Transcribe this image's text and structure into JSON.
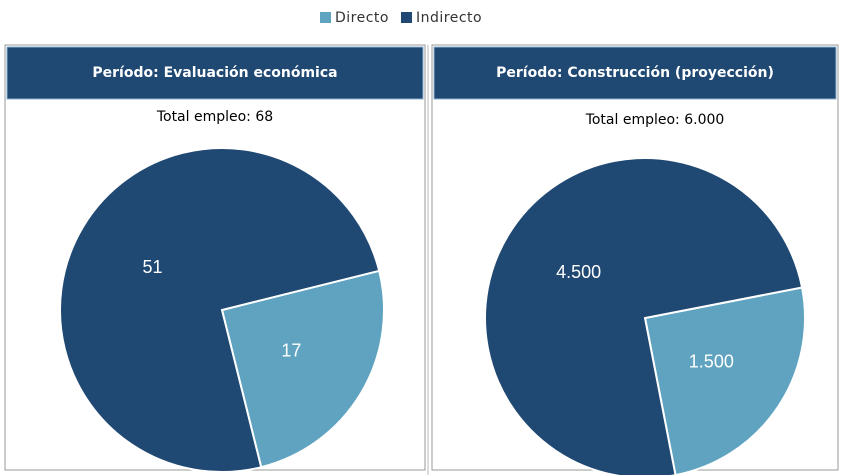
{
  "chart_data": [
    {
      "type": "pie",
      "header": "Período: Evaluación económica",
      "title": "Total empleo: 68",
      "categories": [
        "Directo",
        "Indirecto"
      ],
      "values": [
        17,
        51
      ],
      "colors": [
        "#5fa3c1",
        "#1f4873"
      ]
    },
    {
      "type": "pie",
      "header": "Período: Construcción (proyección)",
      "title": "Total empleo: 6.000",
      "categories": [
        "Directo",
        "Indirecto"
      ],
      "values": [
        1500,
        4500
      ],
      "value_labels": [
        "1.500",
        "4.500"
      ],
      "colors": [
        "#5fa3c1",
        "#1f4873"
      ]
    }
  ]
}
